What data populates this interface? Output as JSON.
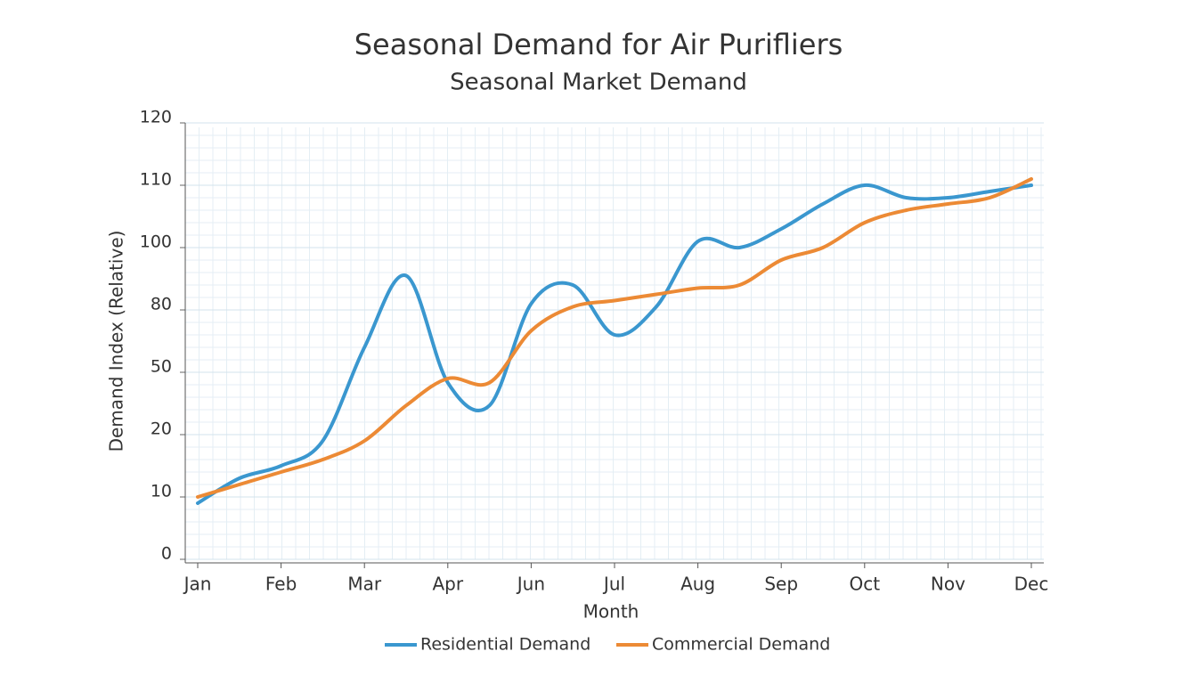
{
  "chart_data": {
    "type": "line",
    "title": "Seasonal Demand for Air Purifliers",
    "subtitle": "Seasonal Market Demand",
    "x_label": "Month",
    "y_label": "Demand Index (Relative)",
    "categories": [
      "Jan",
      null,
      "Feb",
      null,
      "Mar",
      null,
      "Apr",
      null,
      "Jun",
      null,
      "Jul",
      null,
      "Aug",
      null,
      "Sep",
      null,
      "Oct",
      null,
      "Nov",
      null,
      "Dec"
    ],
    "series": [
      {
        "name": "Residential Demand",
        "color": "#3a97cf",
        "values": [
          9,
          13,
          15,
          19,
          62,
          91,
          45,
          34,
          82,
          88,
          68,
          81,
          101,
          100,
          103,
          107,
          110,
          108,
          108,
          109,
          110
        ]
      },
      {
        "name": "Commercial Demand",
        "color": "#ec8a35",
        "values": [
          10,
          12,
          14,
          16,
          19,
          34,
          47,
          45,
          70,
          81,
          83,
          85,
          87,
          88,
          96,
          100,
          104,
          106,
          107,
          108,
          111
        ]
      }
    ],
    "yticks": [
      0,
      10,
      20,
      50,
      80,
      100,
      110,
      120
    ],
    "ylim": [
      0,
      120
    ],
    "grid": true,
    "legend": "bottom"
  }
}
